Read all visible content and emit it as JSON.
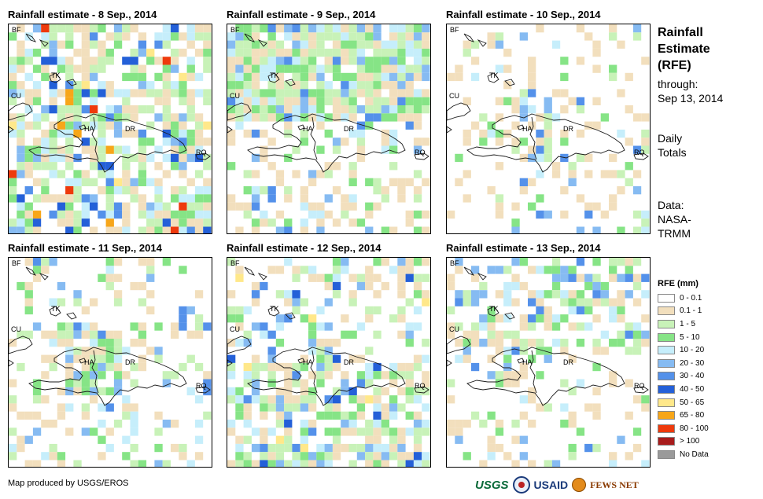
{
  "panels": [
    {
      "title": "Rainfall estimate - 8 Sep., 2014",
      "density": 0.62,
      "intensity": 1.0,
      "focus": "broad",
      "seed": 11
    },
    {
      "title": "Rainfall estimate - 9 Sep., 2014",
      "density": 0.55,
      "intensity": 0.55,
      "focus": "north",
      "seed": 23
    },
    {
      "title": "Rainfall estimate - 10 Sep., 2014",
      "density": 0.18,
      "intensity": 0.6,
      "focus": "haiti",
      "seed": 37
    },
    {
      "title": "Rainfall estimate - 11 Sep., 2014",
      "density": 0.3,
      "intensity": 0.5,
      "focus": "haiti",
      "seed": 41
    },
    {
      "title": "Rainfall estimate - 12 Sep., 2014",
      "density": 0.45,
      "intensity": 0.85,
      "focus": "south",
      "seed": 59
    },
    {
      "title": "Rainfall estimate - 13 Sep., 2014",
      "density": 0.32,
      "intensity": 0.45,
      "focus": "north",
      "seed": 73
    }
  ],
  "map_labels": {
    "bf": "BF",
    "cu": "CU",
    "tk": "TK",
    "ha": "HA",
    "dr": "DR",
    "rq": "RQ"
  },
  "sidebar": {
    "title_line1": "Rainfall",
    "title_line2": "Estimate",
    "title_line3": "(RFE)",
    "through": "through:",
    "date": "Sep 13, 2014",
    "daily1": "Daily",
    "daily2": "Totals",
    "data1": "Data:",
    "data2": "NASA-",
    "data3": "TRMM"
  },
  "legend": {
    "title": "RFE (mm)",
    "items": [
      {
        "label": "0 - 0.1",
        "color": "#ffffff"
      },
      {
        "label": "0.1 - 1",
        "color": "#f2dfbd"
      },
      {
        "label": "1 - 5",
        "color": "#c8f2b8"
      },
      {
        "label": "5 - 10",
        "color": "#86e486"
      },
      {
        "label": "10 - 20",
        "color": "#c6eefb"
      },
      {
        "label": "20 - 30",
        "color": "#86bbf2"
      },
      {
        "label": "30 - 40",
        "color": "#5491ea"
      },
      {
        "label": "40 - 50",
        "color": "#2460d8"
      },
      {
        "label": "50 - 65",
        "color": "#ffe88a"
      },
      {
        "label": "65 - 80",
        "color": "#f7a619"
      },
      {
        "label": "80 - 100",
        "color": "#ee3a0c"
      },
      {
        "label": "> 100",
        "color": "#a81c1c"
      },
      {
        "label": "No Data",
        "color": "#9a9a9a"
      }
    ]
  },
  "credit": "Map produced by USGS/EROS",
  "logos": {
    "usgs": "USGS",
    "usaid": "USAID",
    "fews": "FEWS NET"
  }
}
